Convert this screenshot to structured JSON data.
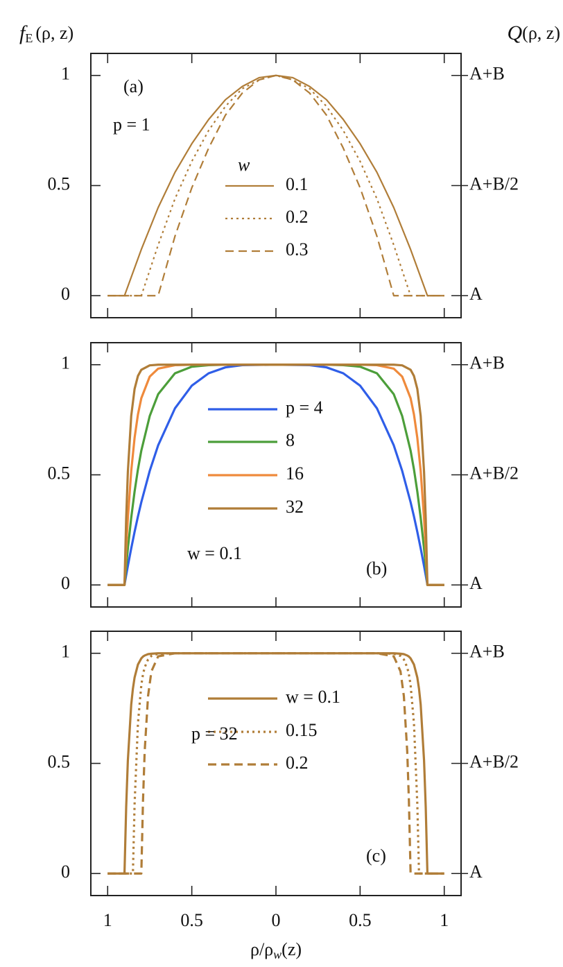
{
  "chart_data": [
    {
      "type": "line",
      "ylabel": [
        "f",
        "E",
        "(ρ, z)"
      ],
      "y2label": [
        "Q",
        "(ρ, z)"
      ],
      "annotations": [
        "(a)",
        "p = 1"
      ],
      "legend_title": "w",
      "x": [
        -1,
        -0.9,
        -0.8,
        -0.7,
        -0.6,
        -0.5,
        -0.4,
        -0.3,
        -0.2,
        -0.1,
        0,
        0.1,
        0.2,
        0.3,
        0.4,
        0.5,
        0.6,
        0.7,
        0.8,
        0.9,
        1
      ],
      "series": [
        {
          "name": "0.1",
          "color": "#b07d38",
          "dash": "solid",
          "values": [
            0,
            0,
            0.21,
            0.4,
            0.56,
            0.69,
            0.8,
            0.89,
            0.95,
            0.99,
            1,
            0.99,
            0.95,
            0.89,
            0.8,
            0.69,
            0.56,
            0.4,
            0.21,
            0,
            0
          ]
        },
        {
          "name": "0.2",
          "color": "#b07d38",
          "dash": "dotted",
          "values": [
            0,
            0,
            0,
            0.23,
            0.44,
            0.61,
            0.75,
            0.86,
            0.94,
            0.98,
            1,
            0.98,
            0.94,
            0.86,
            0.75,
            0.61,
            0.44,
            0.23,
            0,
            0,
            0
          ]
        },
        {
          "name": "0.3",
          "color": "#b07d38",
          "dash": "dashed",
          "values": [
            0,
            0,
            0,
            0,
            0.27,
            0.49,
            0.67,
            0.82,
            0.92,
            0.98,
            1,
            0.98,
            0.92,
            0.82,
            0.67,
            0.49,
            0.27,
            0,
            0,
            0,
            0
          ]
        }
      ],
      "xlim": [
        -1.1,
        1.1
      ],
      "xticks": [
        -1,
        -0.5,
        0,
        0.5,
        1
      ],
      "ylim": [
        -0.1,
        1.1
      ],
      "yticks": [
        0,
        0.5,
        1
      ],
      "y2lim": [
        -0.1,
        1.1
      ],
      "y2ticks": [
        {
          "value": 0,
          "label": "A"
        },
        {
          "value": 0.5,
          "label": "A+B/2"
        },
        {
          "value": 1,
          "label": "A+B"
        }
      ]
    },
    {
      "type": "line",
      "annotations": [
        "w = 0.1",
        "(b)"
      ],
      "x": [
        -1,
        -0.9,
        -0.89,
        -0.88,
        -0.86,
        -0.84,
        -0.82,
        -0.8,
        -0.75,
        -0.7,
        -0.6,
        -0.5,
        -0.4,
        -0.3,
        -0.2,
        0,
        0.2,
        0.3,
        0.4,
        0.5,
        0.6,
        0.7,
        0.75,
        0.8,
        0.82,
        0.84,
        0.86,
        0.88,
        0.89,
        0.9,
        1
      ],
      "series": [
        {
          "name": "p = 4",
          "color": "#2f5ee8",
          "dash": "solid",
          "values": [
            0,
            0,
            0.044,
            0.086,
            0.166,
            0.241,
            0.311,
            0.376,
            0.518,
            0.634,
            0.802,
            0.905,
            0.961,
            0.988,
            0.998,
            1,
            0.998,
            0.988,
            0.961,
            0.905,
            0.802,
            0.634,
            0.518,
            0.376,
            0.311,
            0.241,
            0.166,
            0.086,
            0.044,
            0,
            0
          ]
        },
        {
          "name": "8",
          "color": "#4c9e3a",
          "dash": "solid",
          "values": [
            0,
            0,
            0.086,
            0.165,
            0.305,
            0.424,
            0.525,
            0.61,
            0.767,
            0.866,
            0.961,
            0.991,
            0.998,
            1,
            1,
            1,
            1,
            1,
            0.998,
            0.991,
            0.961,
            0.866,
            0.767,
            0.61,
            0.525,
            0.424,
            0.305,
            0.165,
            0.086,
            0,
            0
          ]
        },
        {
          "name": "16",
          "color": "#ef8a3c",
          "dash": "solid",
          "values": [
            0,
            0,
            0.164,
            0.302,
            0.517,
            0.668,
            0.774,
            0.848,
            0.946,
            0.982,
            0.998,
            1,
            1,
            1,
            1,
            1,
            1,
            1,
            1,
            1,
            0.998,
            0.982,
            0.946,
            0.848,
            0.774,
            0.668,
            0.517,
            0.302,
            0.164,
            0,
            0
          ]
        },
        {
          "name": "32",
          "color": "#b07d38",
          "dash": "solid",
          "values": [
            0,
            0,
            0.301,
            0.513,
            0.767,
            0.89,
            0.949,
            0.977,
            0.997,
            1,
            1,
            1,
            1,
            1,
            1,
            1,
            1,
            1,
            1,
            1,
            1,
            1,
            0.997,
            0.977,
            0.949,
            0.89,
            0.767,
            0.513,
            0.301,
            0,
            0
          ]
        }
      ],
      "xlim": [
        -1.1,
        1.1
      ],
      "xticks": [
        -1,
        -0.5,
        0,
        0.5,
        1
      ],
      "ylim": [
        -0.1,
        1.1
      ],
      "yticks": [
        0,
        0.5,
        1
      ],
      "y2lim": [
        -0.1,
        1.1
      ],
      "y2ticks": [
        {
          "value": 0,
          "label": "A"
        },
        {
          "value": 0.5,
          "label": "A+B/2"
        },
        {
          "value": 1,
          "label": "A+B"
        }
      ]
    },
    {
      "type": "line",
      "annotations": [
        "p = 32",
        "(c)"
      ],
      "xlabel": [
        "ρ/ρ",
        "w",
        "(z)"
      ],
      "x": [
        -1,
        -0.9,
        -0.89,
        -0.88,
        -0.86,
        -0.85,
        -0.84,
        -0.82,
        -0.8,
        -0.79,
        -0.78,
        -0.76,
        -0.74,
        -0.7,
        -0.6,
        0,
        0.6,
        0.7,
        0.74,
        0.76,
        0.78,
        0.79,
        0.8,
        0.82,
        0.84,
        0.85,
        0.86,
        0.88,
        0.89,
        0.9,
        1
      ],
      "series": [
        {
          "name": "w = 0.1",
          "color": "#b07d38",
          "dash": "solid",
          "values": [
            0,
            0,
            0.301,
            0.513,
            0.767,
            0.839,
            0.89,
            0.949,
            0.977,
            0.985,
            0.99,
            0.996,
            0.998,
            1,
            1,
            1,
            1,
            1,
            0.998,
            0.996,
            0.99,
            0.985,
            0.977,
            0.949,
            0.89,
            0.839,
            0.767,
            0.513,
            0.301,
            0,
            0
          ]
        },
        {
          "name": "0.15",
          "color": "#b07d38",
          "dash": "dotted",
          "values": [
            0,
            0,
            0,
            0,
            0,
            0,
            0.315,
            0.683,
            0.856,
            0.904,
            0.936,
            0.972,
            0.988,
            0.998,
            1,
            1,
            1,
            0.998,
            0.988,
            0.972,
            0.936,
            0.904,
            0.856,
            0.683,
            0.315,
            0,
            0,
            0,
            0,
            0,
            0
          ]
        },
        {
          "name": "0.2",
          "color": "#b07d38",
          "dash": "dashed",
          "values": [
            0,
            0,
            0,
            0,
            0,
            0,
            0,
            0,
            0,
            0.331,
            0.555,
            0.806,
            0.918,
            0.986,
            1,
            1,
            1,
            0.986,
            0.918,
            0.806,
            0.555,
            0.331,
            0,
            0,
            0,
            0,
            0,
            0,
            0,
            0,
            0
          ]
        }
      ],
      "xlim": [
        -1.1,
        1.1
      ],
      "xticks": [
        {
          "value": -1,
          "label": "1"
        },
        {
          "value": -0.5,
          "label": "0.5"
        },
        0,
        0.5,
        1
      ],
      "ylim": [
        -0.1,
        1.1
      ],
      "yticks": [
        0,
        0.5,
        1
      ],
      "y2lim": [
        -0.1,
        1.1
      ],
      "y2ticks": [
        {
          "value": 0,
          "label": "A"
        },
        {
          "value": 0.5,
          "label": "A+B/2"
        },
        {
          "value": 1,
          "label": "A+B"
        }
      ]
    }
  ]
}
